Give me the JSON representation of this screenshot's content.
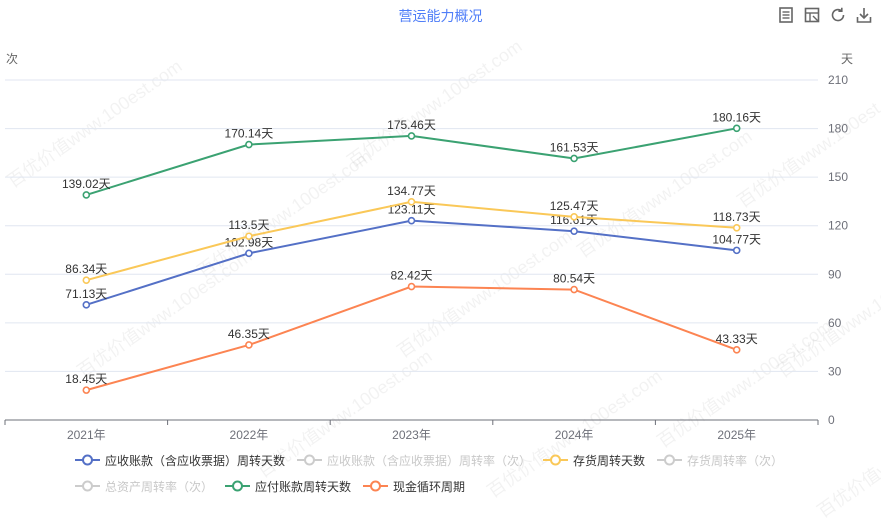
{
  "title": "营运能力概况",
  "toolbar": {
    "icons": [
      "data-view-icon",
      "table-icon",
      "refresh-icon",
      "download-icon"
    ]
  },
  "axes": {
    "left_name": "次",
    "right_name": "天"
  },
  "watermark_text": "百优价值www.100est.com",
  "chart_data": {
    "type": "line",
    "categories": [
      "2021年",
      "2022年",
      "2023年",
      "2024年",
      "2025年"
    ],
    "y_right": {
      "min": 0,
      "max": 210,
      "interval": 30,
      "ticks": [
        "0",
        "30",
        "60",
        "90",
        "120",
        "150",
        "180",
        "210"
      ]
    },
    "series": [
      {
        "name": "应收账款（含应收票据）周转天数",
        "color": "#5470c6",
        "visible": true,
        "values": [
          71.13,
          102.98,
          123.11,
          116.61,
          104.77
        ],
        "labels": [
          "71.13天",
          "102.98天",
          "123.11天",
          "116.61天",
          "104.77天"
        ]
      },
      {
        "name": "应收账款（含应收票据）周转率（次）",
        "color": "#91cc75",
        "visible": false
      },
      {
        "name": "存货周转天数",
        "color": "#fac858",
        "visible": true,
        "values": [
          86.34,
          113.5,
          134.77,
          125.47,
          118.73
        ],
        "labels": [
          "86.34天",
          "113.5天",
          "134.77天",
          "125.47天",
          "118.73天"
        ]
      },
      {
        "name": "存货周转率（次）",
        "color": "#ee6666",
        "visible": false
      },
      {
        "name": "总资产周转率（次）",
        "color": "#73c0de",
        "visible": false
      },
      {
        "name": "应付账款周转天数",
        "color": "#3ba272",
        "visible": true,
        "values": [
          139.02,
          170.14,
          175.46,
          161.53,
          180.16
        ],
        "labels": [
          "139.02天",
          "170.14天",
          "175.46天",
          "161.53天",
          "180.16天"
        ]
      },
      {
        "name": "现金循环周期",
        "color": "#fc8452",
        "visible": true,
        "values": [
          18.45,
          46.35,
          82.42,
          80.54,
          43.33
        ],
        "labels": [
          "18.45天",
          "46.35天",
          "82.42天",
          "80.54天",
          "43.33天"
        ]
      }
    ],
    "grid": true,
    "legend_position": "bottom"
  }
}
